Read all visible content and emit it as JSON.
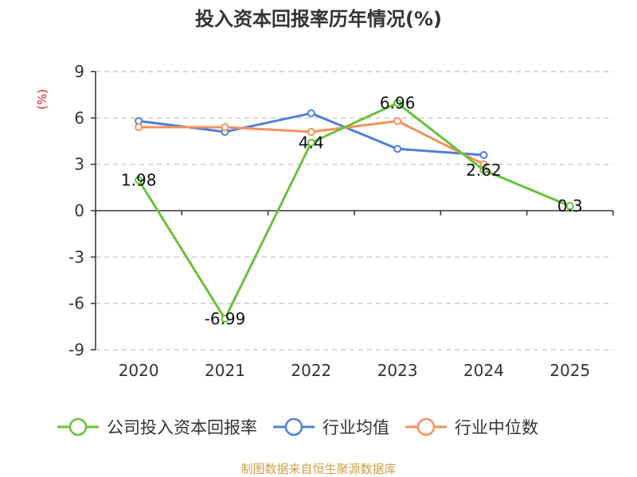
{
  "chart_data": {
    "type": "line",
    "title": "投入资本回报率历年情况(%)",
    "unit_label": "(%)",
    "categories": [
      "2020",
      "2021",
      "2022",
      "2023",
      "2024",
      "2025"
    ],
    "ylim": [
      -9,
      9
    ],
    "yticks": [
      9,
      6,
      3,
      0,
      -3,
      -6,
      -9
    ],
    "grid": true,
    "legend_position": "bottom",
    "series": [
      {
        "name": "公司投入资本回报率",
        "color": "#67c23a",
        "values": [
          1.98,
          -6.99,
          4.4,
          6.96,
          2.62,
          0.3
        ],
        "labels": true
      },
      {
        "name": "行业均值",
        "color": "#4e7fd8",
        "values": [
          5.8,
          5.1,
          6.3,
          4.0,
          3.6,
          null
        ],
        "labels": false
      },
      {
        "name": "行业中位数",
        "color": "#f5915c",
        "values": [
          5.4,
          5.4,
          5.1,
          5.8,
          3.0,
          null
        ],
        "labels": false
      }
    ]
  },
  "unit_color": "#e02020",
  "source_color": "#c8a04a",
  "source": "制图数据来自恒生聚源数据库"
}
